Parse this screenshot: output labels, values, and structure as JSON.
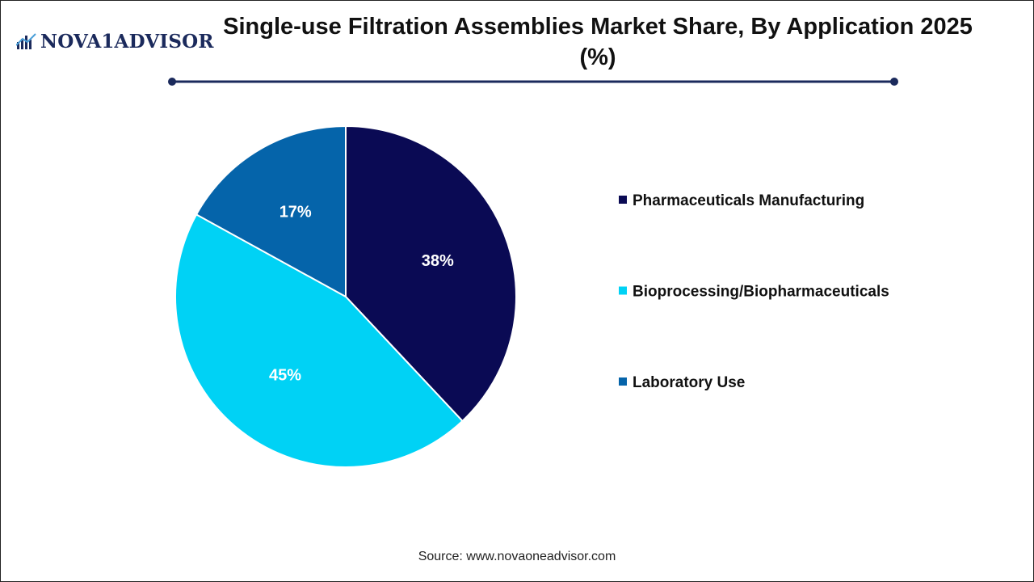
{
  "brand": {
    "logo_text": "NOVA1ADVISOR"
  },
  "source_text": "Source: www.novaoneadvisor.com",
  "colors": {
    "navy": "#0a0a54",
    "cyan": "#00d2f5",
    "blue": "#0564aa",
    "divider": "#1b2a5c"
  },
  "chart_data": {
    "type": "pie",
    "title": "Single-use Filtration Assemblies Market Share, By Application 2025 (%)",
    "legend_position": "right",
    "slices": [
      {
        "label": "Pharmaceuticals Manufacturing",
        "value": 38,
        "display": "38%",
        "color": "#0a0a54"
      },
      {
        "label": "Bioprocessing/Biopharmaceuticals",
        "value": 45,
        "display": "45%",
        "color": "#00d2f5"
      },
      {
        "label": "Laboratory Use",
        "value": 17,
        "display": "17%",
        "color": "#0564aa"
      }
    ]
  }
}
